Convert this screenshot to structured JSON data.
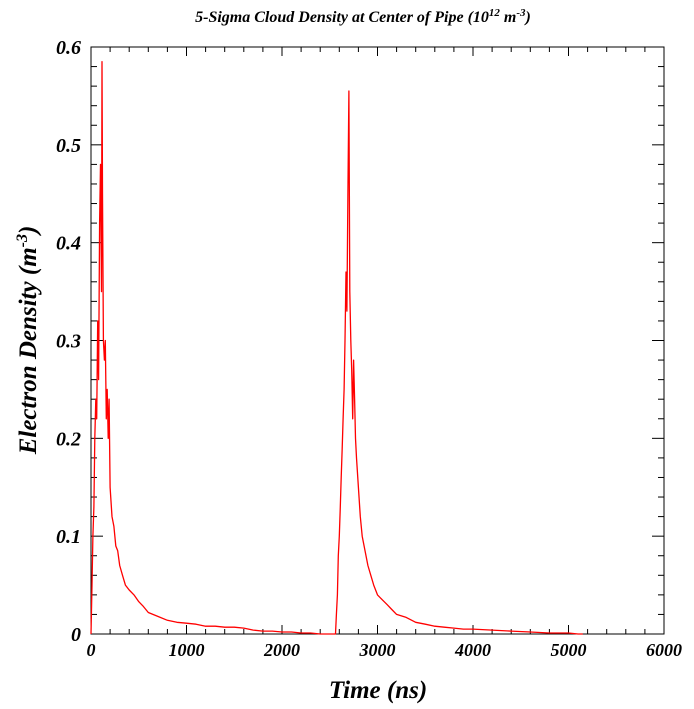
{
  "chart_data": {
    "type": "line",
    "title": {
      "main": "5-Sigma Cloud Density at Center of Pipe (10",
      "exp1": "12",
      "mid": " m",
      "exp2": "-3",
      "end": ")"
    },
    "xlabel": "Time (ns)",
    "ylabel": {
      "main": "Electron Density (m",
      "exp": "-3",
      "end": ")"
    },
    "xlim": [
      0,
      6000
    ],
    "ylim": [
      0,
      0.6
    ],
    "x_ticks": [
      0,
      1000,
      2000,
      3000,
      4000,
      5000,
      6000
    ],
    "x_tick_labels": [
      "0",
      "1000",
      "2000",
      "3000",
      "4000",
      "5000",
      "6000"
    ],
    "y_ticks": [
      0,
      0.1,
      0.2,
      0.3,
      0.4,
      0.5,
      0.6
    ],
    "y_tick_labels": [
      "0",
      "0.1",
      "0.2",
      "0.3",
      "0.4",
      "0.5",
      "0.6"
    ],
    "grid": false,
    "series_color": "#ff0000",
    "series": [
      {
        "x": [
          0,
          10,
          20,
          30,
          40,
          50,
          60,
          70,
          80,
          90,
          100,
          110,
          115,
          120,
          130,
          140,
          150,
          160,
          170,
          180,
          190,
          200,
          220,
          240,
          260,
          280,
          300,
          330,
          360,
          400,
          450,
          500,
          550,
          600,
          700,
          800,
          900,
          1000,
          1100,
          1200,
          1300,
          1400,
          1500,
          1600,
          1700,
          1800,
          1900,
          2000,
          2100,
          2200,
          2300,
          2400,
          2500,
          2540,
          2560,
          2570,
          2580,
          2590,
          2600,
          2610,
          2620,
          2630,
          2640,
          2650,
          2660,
          2670,
          2680,
          2690,
          2700,
          2710,
          2720,
          2730,
          2740,
          2750,
          2760,
          2770,
          2780,
          2800,
          2820,
          2840,
          2860,
          2880,
          2900,
          2930,
          2960,
          3000,
          3050,
          3100,
          3150,
          3200,
          3300,
          3400,
          3500,
          3600,
          3700,
          3800,
          3900,
          4000,
          4200,
          4400,
          4600,
          4800,
          5000,
          5100,
          5150
        ],
        "y": [
          0.0,
          0.05,
          0.1,
          0.13,
          0.2,
          0.24,
          0.22,
          0.32,
          0.26,
          0.42,
          0.48,
          0.35,
          0.585,
          0.45,
          0.3,
          0.28,
          0.3,
          0.22,
          0.25,
          0.2,
          0.24,
          0.15,
          0.12,
          0.11,
          0.09,
          0.085,
          0.07,
          0.06,
          0.05,
          0.045,
          0.04,
          0.033,
          0.028,
          0.022,
          0.018,
          0.014,
          0.012,
          0.011,
          0.01,
          0.008,
          0.008,
          0.007,
          0.007,
          0.006,
          0.004,
          0.003,
          0.003,
          0.002,
          0.002,
          0.001,
          0.001,
          0.0,
          0.0,
          0.0,
          0.0,
          0.02,
          0.04,
          0.08,
          0.1,
          0.13,
          0.16,
          0.19,
          0.22,
          0.25,
          0.3,
          0.37,
          0.33,
          0.45,
          0.555,
          0.35,
          0.3,
          0.27,
          0.22,
          0.28,
          0.24,
          0.2,
          0.18,
          0.15,
          0.12,
          0.1,
          0.09,
          0.08,
          0.07,
          0.06,
          0.05,
          0.04,
          0.035,
          0.03,
          0.025,
          0.02,
          0.017,
          0.012,
          0.01,
          0.008,
          0.007,
          0.006,
          0.005,
          0.005,
          0.004,
          0.003,
          0.002,
          0.001,
          0.001,
          0.0,
          0.0
        ]
      }
    ]
  }
}
